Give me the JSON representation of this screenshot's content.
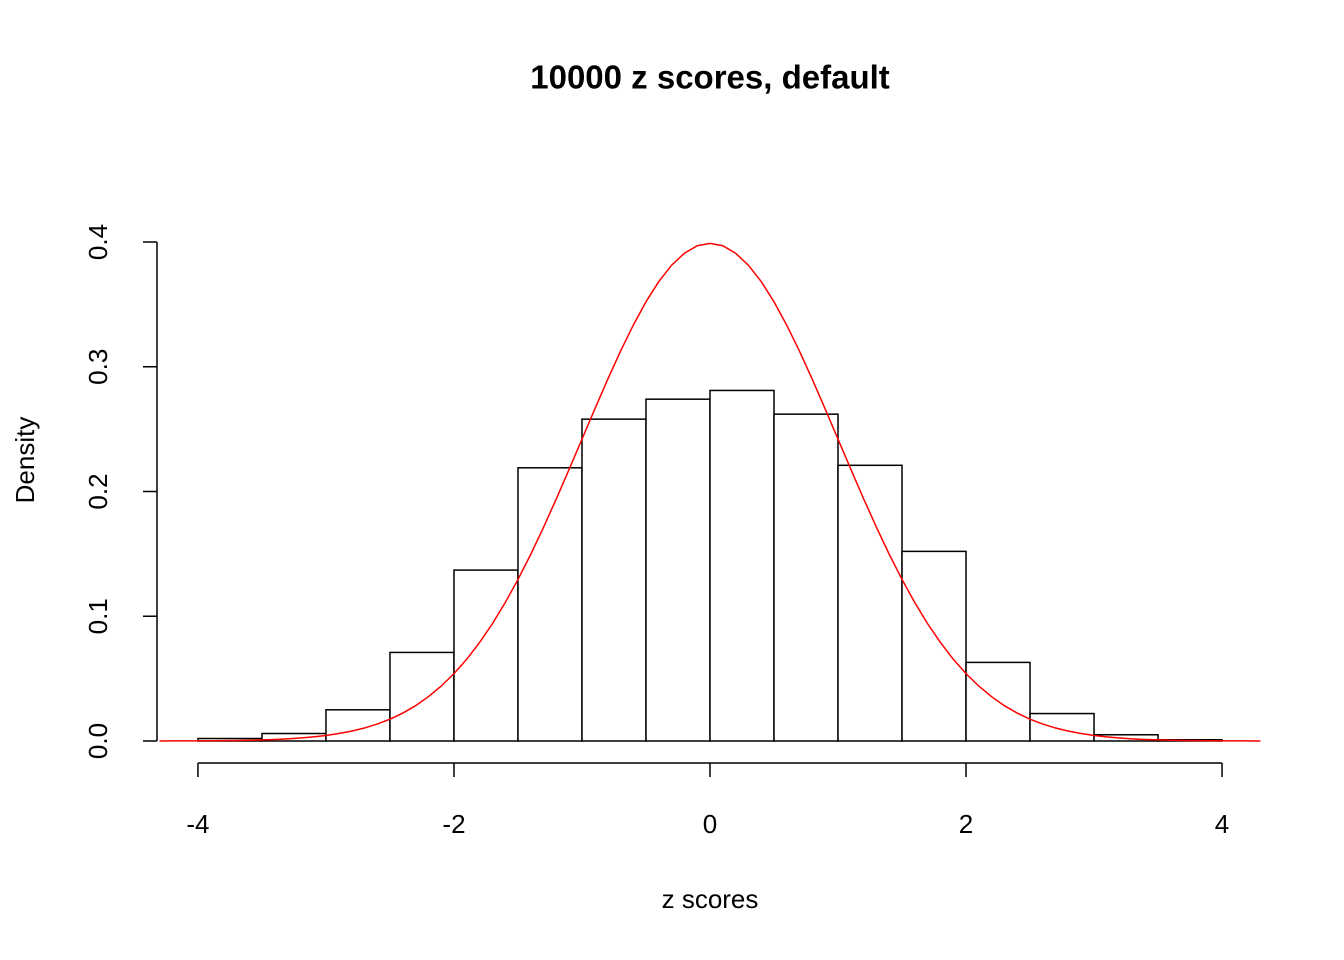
{
  "chart_data": {
    "type": "histogram",
    "title": "10000 z scores, default",
    "x_label": "z scores",
    "y_label": "Density",
    "bins": [
      -4,
      -3.5,
      -3,
      -2.5,
      -2,
      -1.5,
      -1,
      -0.5,
      0,
      0.5,
      1,
      1.5,
      2,
      2.5,
      3,
      3.5,
      4
    ],
    "values": [
      0.002,
      0.006,
      0.025,
      0.071,
      0.137,
      0.219,
      0.258,
      0.274,
      0.281,
      0.262,
      0.221,
      0.152,
      0.063,
      0.022,
      0.005,
      0.001
    ],
    "color": "#ffffff",
    "edge_color": "#000000",
    "curve": {
      "color": "#ff0000",
      "x": [
        -4.3,
        -4.2,
        -4.1,
        -4.0,
        -3.9,
        -3.8,
        -3.7,
        -3.6,
        -3.5,
        -3.4,
        -3.3,
        -3.2,
        -3.1,
        -3.0,
        -2.9,
        -2.8,
        -2.7,
        -2.6,
        -2.5,
        -2.4,
        -2.3,
        -2.2,
        -2.1,
        -2.0,
        -1.9,
        -1.8,
        -1.7,
        -1.6,
        -1.5,
        -1.4,
        -1.3,
        -1.2,
        -1.1,
        -1.0,
        -0.9,
        -0.8,
        -0.7,
        -0.6,
        -0.5,
        -0.4,
        -0.3,
        -0.2,
        -0.1,
        0,
        0.1,
        0.2,
        0.3,
        0.4,
        0.5,
        0.6,
        0.7,
        0.8,
        0.9,
        1.0,
        1.1,
        1.2,
        1.3,
        1.4,
        1.5,
        1.6,
        1.7,
        1.8,
        1.9,
        2.0,
        2.1,
        2.2,
        2.3,
        2.4,
        2.5,
        2.6,
        2.7,
        2.8,
        2.9,
        3.0,
        3.1,
        3.2,
        3.3,
        3.4,
        3.5,
        3.6,
        3.7,
        3.8,
        3.9,
        4.0,
        4.1,
        4.2,
        4.3
      ],
      "y": [
        0.0,
        0.0001,
        0.0001,
        0.0001,
        0.0002,
        0.0003,
        0.0004,
        0.0006,
        0.0009,
        0.0012,
        0.0017,
        0.0024,
        0.0033,
        0.0044,
        0.006,
        0.0079,
        0.0104,
        0.0136,
        0.0175,
        0.0224,
        0.0283,
        0.0355,
        0.044,
        0.054,
        0.0656,
        0.079,
        0.094,
        0.1109,
        0.1295,
        0.1497,
        0.1714,
        0.1942,
        0.2179,
        0.242,
        0.2661,
        0.2897,
        0.3123,
        0.3332,
        0.3521,
        0.3683,
        0.3814,
        0.391,
        0.397,
        0.3989,
        0.397,
        0.391,
        0.3814,
        0.3683,
        0.3521,
        0.3332,
        0.3123,
        0.2897,
        0.2661,
        0.242,
        0.2179,
        0.1942,
        0.1714,
        0.1497,
        0.1295,
        0.1109,
        0.094,
        0.079,
        0.0656,
        0.054,
        0.044,
        0.0355,
        0.0283,
        0.0224,
        0.0175,
        0.0136,
        0.0104,
        0.0079,
        0.006,
        0.0044,
        0.0033,
        0.0024,
        0.0017,
        0.0012,
        0.0009,
        0.0006,
        0.0004,
        0.0003,
        0.0002,
        0.0001,
        0.0001,
        0.0001,
        0.0
      ]
    },
    "xlim": [
      -4.32,
      4.32
    ],
    "ylim": [
      0,
      0.4
    ],
    "xticks": [
      -4,
      -2,
      0,
      2,
      4
    ],
    "yticks": [
      {
        "value": 0,
        "label": "0.0"
      },
      0.1,
      0.2,
      0.3,
      0.4
    ]
  }
}
